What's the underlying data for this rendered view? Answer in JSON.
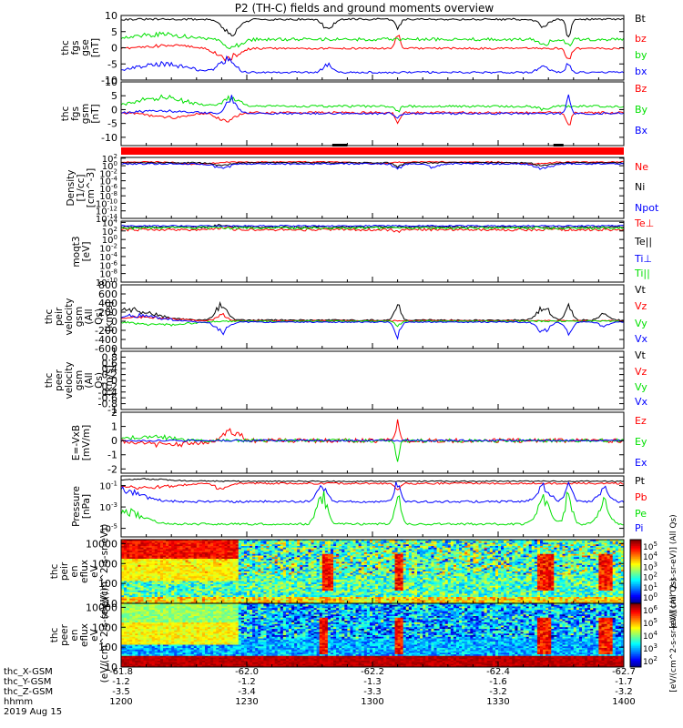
{
  "title": "P2 (TH-C) fields and ground moments overview",
  "date_label": "2019 Aug 15",
  "ephemeris": {
    "row_labels": [
      "thc_X-GSM",
      "thc_Y-GSM",
      "thc_Z-GSM",
      "hhmm"
    ],
    "columns": [
      {
        "x": "-61.8",
        "y": "-1.2",
        "z": "-3.5",
        "hhmm": "1200"
      },
      {
        "x": "-62.0",
        "y": "-1.2",
        "z": "-3.4",
        "hhmm": "1230"
      },
      {
        "x": "-62.2",
        "y": "-1.3",
        "z": "-3.3",
        "hhmm": "1300"
      },
      {
        "x": "-62.4",
        "y": "-1.6",
        "z": "-3.2",
        "hhmm": "1330"
      },
      {
        "x": "-62.7",
        "y": "-1.7",
        "z": "-3.2",
        "hhmm": "1400"
      }
    ],
    "minor_ticks": 20
  },
  "colorbars": [
    {
      "label": "[eV/(cm^2-s-sr-eV)] (All Qs)",
      "ticks": [
        "10^5",
        "10^4",
        "10^3",
        "10^2",
        "10^1",
        "10^0"
      ]
    },
    {
      "label": "[eV/(cm^2-s-sr-eV)] (All Qs)",
      "ticks": [
        "10^6",
        "10^5",
        "10^4",
        "10^3",
        "10^2"
      ]
    }
  ],
  "colors": {
    "black": "#000000",
    "red": "#ff0000",
    "green": "#00e000",
    "blue": "#0000ff",
    "bar_red": "#ff0000"
  },
  "chart_data": [
    {
      "type": "line",
      "ylabel": "thc fgs gse [nT]",
      "yticks": [
        10,
        5,
        0,
        -5,
        -10
      ],
      "ylim": [
        -10,
        10
      ],
      "series": [
        {
          "name": "Bt",
          "color": "black",
          "base": 8.8,
          "noise": 0.3,
          "lim": [
            0,
            10
          ],
          "events": [
            [
              0.22,
              1.6,
              -4
            ],
            [
              0.41,
              1.0,
              -3
            ],
            [
              0.55,
              0.5,
              -3
            ],
            [
              0.84,
              1.2,
              -2
            ],
            [
              0.89,
              0.5,
              -5
            ]
          ]
        },
        {
          "name": "bz",
          "color": "red",
          "base": -0.2,
          "noise": 0.3,
          "lim": [
            -10,
            10
          ],
          "events": [
            [
              0.1,
              4.0,
              1
            ],
            [
              0.21,
              2.0,
              -3
            ],
            [
              0.55,
              0.5,
              4
            ],
            [
              0.89,
              0.5,
              -4
            ]
          ]
        },
        {
          "name": "by",
          "color": "green",
          "base": 2.6,
          "noise": 0.5,
          "lim": [
            -10,
            10
          ],
          "events": [
            [
              0.08,
              5.0,
              1.5
            ],
            [
              0.22,
              1.5,
              -3
            ],
            [
              0.84,
              1.0,
              -1.5
            ],
            [
              0.89,
              0.5,
              -2
            ]
          ]
        },
        {
          "name": "bx",
          "color": "blue",
          "base": -7.6,
          "noise": 0.3,
          "lim": [
            -10,
            10
          ],
          "events": [
            [
              0.08,
              5.0,
              2.5
            ],
            [
              0.21,
              1.5,
              4
            ],
            [
              0.41,
              0.8,
              2.5
            ],
            [
              0.84,
              1.0,
              2
            ],
            [
              0.89,
              0.4,
              3
            ]
          ]
        }
      ]
    },
    {
      "type": "line",
      "ylabel": "thc fgs gsm [nT]",
      "yticks": [
        10,
        5,
        0,
        -5,
        -10
      ],
      "ylim": [
        -13,
        10
      ],
      "series": [
        {
          "name": "Bz",
          "color": "red",
          "base": -1.1,
          "noise": 0.4,
          "lim": [
            -13,
            10
          ],
          "events": [
            [
              0.1,
              4.0,
              -1.5
            ],
            [
              0.21,
              1.6,
              -3
            ],
            [
              0.55,
              0.5,
              -3
            ],
            [
              0.89,
              0.5,
              -4
            ]
          ]
        },
        {
          "name": "By",
          "color": "green",
          "base": 1.2,
          "noise": 0.4,
          "lim": [
            -13,
            10
          ],
          "events": [
            [
              0.08,
              5.0,
              3
            ],
            [
              0.22,
              1.5,
              3
            ],
            [
              0.55,
              0.5,
              -2
            ],
            [
              0.84,
              1.0,
              -1
            ]
          ]
        },
        {
          "name": "Bx",
          "color": "blue",
          "base": -1.4,
          "noise": 0.35,
          "lim": [
            -13,
            10
          ],
          "events": [
            [
              0.08,
              5.0,
              1
            ],
            [
              0.22,
              1.0,
              6
            ],
            [
              0.55,
              0.5,
              -2
            ],
            [
              0.89,
              0.4,
              6
            ]
          ]
        }
      ]
    },
    {
      "type": "line",
      "ylabel": "Density [1/cc] [cm^-3]",
      "log": true,
      "yticks": [
        "10^2",
        "10^0",
        "10^-2",
        "10^-4",
        "10^-6",
        "10^-8",
        "10^-10",
        "10^-12",
        "10^-14"
      ],
      "ylim": [
        -14,
        2.2
      ],
      "series": [
        {
          "name": "Ne",
          "color": "red",
          "base": 1.0,
          "noise": 0.15,
          "lim": [
            -14,
            2.2
          ],
          "events": [
            [
              0.15,
              3.0,
              -0.6
            ],
            [
              0.5,
              3.0,
              -0.4
            ],
            [
              0.82,
              3.0,
              -0.5
            ]
          ]
        },
        {
          "name": "Ni",
          "color": "black",
          "base": 0.8,
          "noise": 0.15,
          "lim": [
            -14,
            2.2
          ],
          "events": [
            [
              0.2,
              1.5,
              -0.7
            ],
            [
              0.55,
              0.8,
              -1.0
            ],
            [
              0.84,
              1.5,
              -0.8
            ]
          ]
        },
        {
          "name": "Npot",
          "color": "blue",
          "base": 0.5,
          "noise": 0.2,
          "lim": [
            -14,
            2.2
          ],
          "events": [
            [
              0.2,
              1.5,
              -1.2
            ],
            [
              0.55,
              0.8,
              -1.2
            ],
            [
              0.84,
              1.5,
              -1.3
            ],
            [
              0.62,
              1.0,
              -1.0
            ]
          ]
        }
      ]
    },
    {
      "type": "line",
      "ylabel": "moqt3 [eV]",
      "log": true,
      "yticks": [
        "10^4",
        "10^2",
        "10^0",
        "10^-2",
        "10^-4",
        "10^-6",
        "10^-8",
        "10^-10"
      ],
      "ylim": [
        -10,
        4.3
      ],
      "series": [
        {
          "name": "Te⊥",
          "color": "red",
          "base": 2.3,
          "noise": 0.3,
          "lim": [
            -10,
            4.3
          ],
          "events": [
            [
              0.2,
              1.5,
              0.5
            ],
            [
              0.55,
              0.8,
              -0.5
            ]
          ]
        },
        {
          "name": "Te||",
          "color": "black",
          "base": 2.9,
          "noise": 0.25,
          "lim": [
            -10,
            4.3
          ],
          "events": [
            [
              0.2,
              1.5,
              0.4
            ]
          ]
        },
        {
          "name": "Ti⊥",
          "color": "blue",
          "base": 3.2,
          "noise": 0.15,
          "lim": [
            -10,
            4.3
          ],
          "events": []
        },
        {
          "name": "Ti||",
          "color": "green",
          "base": 2.7,
          "noise": 0.3,
          "lim": [
            -10,
            4.3
          ],
          "events": []
        }
      ]
    },
    {
      "type": "line",
      "ylabel": "thc peir velocity gsm (All Qs) [km/s]",
      "yticks": [
        800,
        600,
        400,
        200,
        0,
        -200,
        -400,
        -600
      ],
      "ylim": [
        -600,
        800
      ],
      "series": [
        {
          "name": "Vt",
          "color": "black",
          "base": 25,
          "noise": 15,
          "lim": [
            -600,
            800
          ],
          "events": [
            [
              0.0,
              5.5,
              250
            ],
            [
              0.2,
              1.2,
              300
            ],
            [
              0.55,
              0.6,
              350
            ],
            [
              0.84,
              1.2,
              280
            ],
            [
              0.89,
              0.7,
              280
            ],
            [
              0.96,
              1.0,
              120
            ]
          ]
        },
        {
          "name": "Vz",
          "color": "red",
          "base": 10,
          "noise": 12,
          "lim": [
            -600,
            800
          ],
          "events": [
            [
              0.05,
              5.0,
              80
            ],
            [
              0.2,
              1.0,
              150
            ]
          ]
        },
        {
          "name": "Vy",
          "color": "green",
          "base": 0,
          "noise": 15,
          "lim": [
            -600,
            800
          ],
          "events": [
            [
              0.08,
              5.0,
              -80
            ],
            [
              0.55,
              0.5,
              -100
            ]
          ]
        },
        {
          "name": "Vx",
          "color": "blue",
          "base": -20,
          "noise": 12,
          "lim": [
            -600,
            800
          ],
          "events": [
            [
              0.03,
              5.0,
              150
            ],
            [
              0.2,
              1.2,
              -220
            ],
            [
              0.55,
              0.6,
              -280
            ],
            [
              0.84,
              1.2,
              -200
            ],
            [
              0.89,
              0.7,
              -220
            ],
            [
              0.96,
              1.0,
              -80
            ]
          ]
        }
      ]
    },
    {
      "type": "line",
      "ylabel": "thc peer velocity gsm (All Qs) [km/s]",
      "yticks": [
        1.0,
        0.8,
        0.6,
        0.4,
        0.2,
        0.0,
        -0.2,
        -0.4,
        -0.6,
        -0.8,
        -1.0
      ],
      "ylim": [
        -1,
        1
      ],
      "series": [
        {
          "name": "Vt",
          "color": "black"
        },
        {
          "name": "Vz",
          "color": "red"
        },
        {
          "name": "Vy",
          "color": "green"
        },
        {
          "name": "Vx",
          "color": "blue"
        }
      ]
    },
    {
      "type": "line",
      "ylabel": "E=-VxB [mV/m]",
      "yticks": [
        2,
        1,
        0,
        -1,
        -2
      ],
      "ylim": [
        -2.3,
        2
      ],
      "series": [
        {
          "name": "Ez",
          "color": "red",
          "base": 0,
          "noise": 0.15,
          "lim": [
            -2.3,
            2
          ],
          "events": [
            [
              0.1,
              5.0,
              -0.3
            ],
            [
              0.22,
              1.5,
              0.7
            ],
            [
              0.55,
              0.4,
              1.2
            ]
          ]
        },
        {
          "name": "Ey",
          "color": "green",
          "base": 0,
          "noise": 0.12,
          "lim": [
            -2.3,
            2
          ],
          "events": [
            [
              0.06,
              5.0,
              0.25
            ],
            [
              0.55,
              0.3,
              -1.6
            ]
          ]
        },
        {
          "name": "Ex",
          "color": "blue",
          "base": 0,
          "noise": 0.06,
          "lim": [
            -2.3,
            2
          ],
          "events": []
        }
      ]
    },
    {
      "type": "line",
      "ylabel": "Pressure [nPa]",
      "log": true,
      "yticks": [
        "10^-1",
        "10^-3",
        "10^-5"
      ],
      "ylim": [
        -5.8,
        -0.1
      ],
      "series": [
        {
          "name": "Pt",
          "color": "black",
          "base": -0.6,
          "noise": 0.05,
          "lim": [
            -5.8,
            -0.1
          ],
          "events": [
            [
              0.05,
              5.0,
              0.2
            ]
          ]
        },
        {
          "name": "Pb",
          "color": "red",
          "base": -0.8,
          "noise": 0.08,
          "lim": [
            -5.8,
            -0.1
          ],
          "events": [
            [
              0.05,
              5.0,
              -0.4
            ],
            [
              0.2,
              1.2,
              -0.5
            ],
            [
              0.55,
              0.5,
              -0.6
            ]
          ]
        },
        {
          "name": "Pe",
          "color": "green",
          "base": -4.6,
          "noise": 0.1,
          "lim": [
            -5.8,
            -0.1
          ],
          "events": [
            [
              0.0,
              4.0,
              1.2
            ],
            [
              0.4,
              1.0,
              2.5
            ],
            [
              0.55,
              0.6,
              2.7
            ],
            [
              0.84,
              1.2,
              2.3
            ],
            [
              0.89,
              0.7,
              2.5
            ],
            [
              0.96,
              1.0,
              2.0
            ]
          ]
        },
        {
          "name": "Pi",
          "color": "blue",
          "base": -2.5,
          "noise": 0.1,
          "lim": [
            -5.8,
            -0.1
          ],
          "events": [
            [
              0.0,
              4.0,
              1.0
            ],
            [
              0.4,
              1.0,
              1.4
            ],
            [
              0.55,
              0.6,
              1.6
            ],
            [
              0.84,
              1.2,
              1.4
            ],
            [
              0.89,
              0.7,
              1.5
            ],
            [
              0.96,
              1.0,
              1.2
            ]
          ]
        }
      ]
    },
    {
      "type": "heatmap",
      "ylabel": "thc peir en eflux eV (eV/(cm^2-s-sr-eV))",
      "yticks": [
        "10000",
        "1000",
        "100",
        "10"
      ],
      "ylim": [
        1,
        4.2
      ],
      "background": 0.45,
      "top_band": {
        "level": 0.95,
        "until": 0.23,
        "decay": 6
      },
      "noise": 0.35,
      "hot": [
        [
          0.41,
          1.0
        ],
        [
          0.55,
          0.6
        ],
        [
          0.84,
          1.3
        ],
        [
          0.96,
          1.2
        ]
      ]
    },
    {
      "type": "heatmap",
      "ylabel": "thc peer en eflux eV (eV/(cm^2-s-sr-eV))",
      "yticks": [
        "10000",
        "1000",
        "100",
        "10"
      ],
      "ylim": [
        1,
        4.2
      ],
      "background": 0.3,
      "top_band": {
        "level": 0.6,
        "until": 0.23,
        "decay": 2
      },
      "noise": 0.25,
      "hot": [
        [
          0.4,
          0.8
        ],
        [
          0.55,
          0.5
        ],
        [
          0.84,
          1.2
        ],
        [
          0.96,
          1.1
        ]
      ],
      "bottom_band": 0.9
    }
  ]
}
